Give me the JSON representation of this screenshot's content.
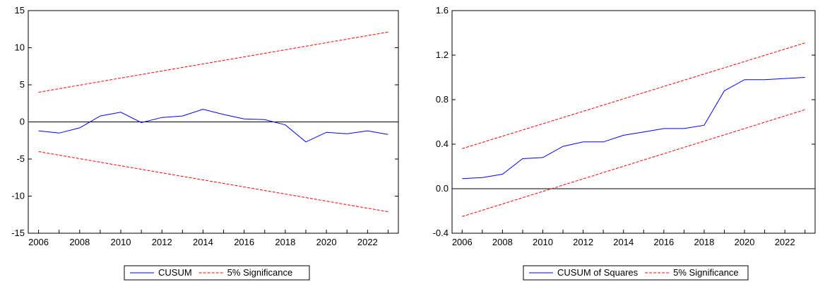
{
  "chart_data": [
    {
      "type": "line",
      "xlim": [
        2005.5,
        2023.5
      ],
      "ylim": [
        -15,
        15
      ],
      "xticks": [
        "2006",
        "2008",
        "2010",
        "2012",
        "2014",
        "2016",
        "2018",
        "2020",
        "2022"
      ],
      "yticks": [
        "-15",
        "-10",
        "-5",
        "0",
        "5",
        "10",
        "15"
      ],
      "zero_line": true,
      "grid": false,
      "legend_position": "bottom",
      "series": [
        {
          "name": "CUSUM",
          "color": "#0000ff",
          "style": "solid",
          "x": [
            2006,
            2007,
            2008,
            2009,
            2010,
            2011,
            2012,
            2013,
            2014,
            2015,
            2016,
            2017,
            2018,
            2019,
            2020,
            2021,
            2022,
            2023
          ],
          "y": [
            -1.2,
            -1.5,
            -0.8,
            0.8,
            1.3,
            -0.1,
            0.6,
            0.8,
            1.7,
            1.0,
            0.4,
            0.3,
            -0.4,
            -2.7,
            -1.4,
            -1.6,
            -1.2,
            -1.7
          ]
        },
        {
          "name": "5% Significance",
          "color": "#ff0000",
          "style": "dashed",
          "x": [
            2006,
            2023
          ],
          "y": [
            4.0,
            12.1
          ]
        },
        {
          "name": "",
          "color": "#ff0000",
          "style": "dashed",
          "x": [
            2006,
            2023
          ],
          "y": [
            -4.0,
            -12.1
          ]
        }
      ]
    },
    {
      "type": "line",
      "xlim": [
        2005.5,
        2023.5
      ],
      "ylim": [
        -0.4,
        1.6
      ],
      "xticks": [
        "2006",
        "2008",
        "2010",
        "2012",
        "2014",
        "2016",
        "2018",
        "2020",
        "2022"
      ],
      "yticks": [
        "-0.4",
        "0.0",
        "0.4",
        "0.8",
        "1.2",
        "1.6"
      ],
      "zero_line": true,
      "grid": false,
      "legend_position": "bottom",
      "series": [
        {
          "name": "CUSUM of Squares",
          "color": "#0000ff",
          "style": "solid",
          "x": [
            2006,
            2007,
            2008,
            2009,
            2010,
            2011,
            2012,
            2013,
            2014,
            2015,
            2016,
            2017,
            2018,
            2019,
            2020,
            2021,
            2022,
            2023
          ],
          "y": [
            0.09,
            0.1,
            0.13,
            0.27,
            0.28,
            0.38,
            0.42,
            0.42,
            0.48,
            0.51,
            0.54,
            0.54,
            0.57,
            0.88,
            0.98,
            0.98,
            0.99,
            1.0
          ]
        },
        {
          "name": "5% Significance",
          "color": "#ff0000",
          "style": "dashed",
          "x": [
            2006,
            2023
          ],
          "y": [
            0.36,
            1.31
          ]
        },
        {
          "name": "",
          "color": "#ff0000",
          "style": "dashed",
          "x": [
            2006,
            2023
          ],
          "y": [
            -0.25,
            0.71
          ]
        }
      ]
    }
  ]
}
